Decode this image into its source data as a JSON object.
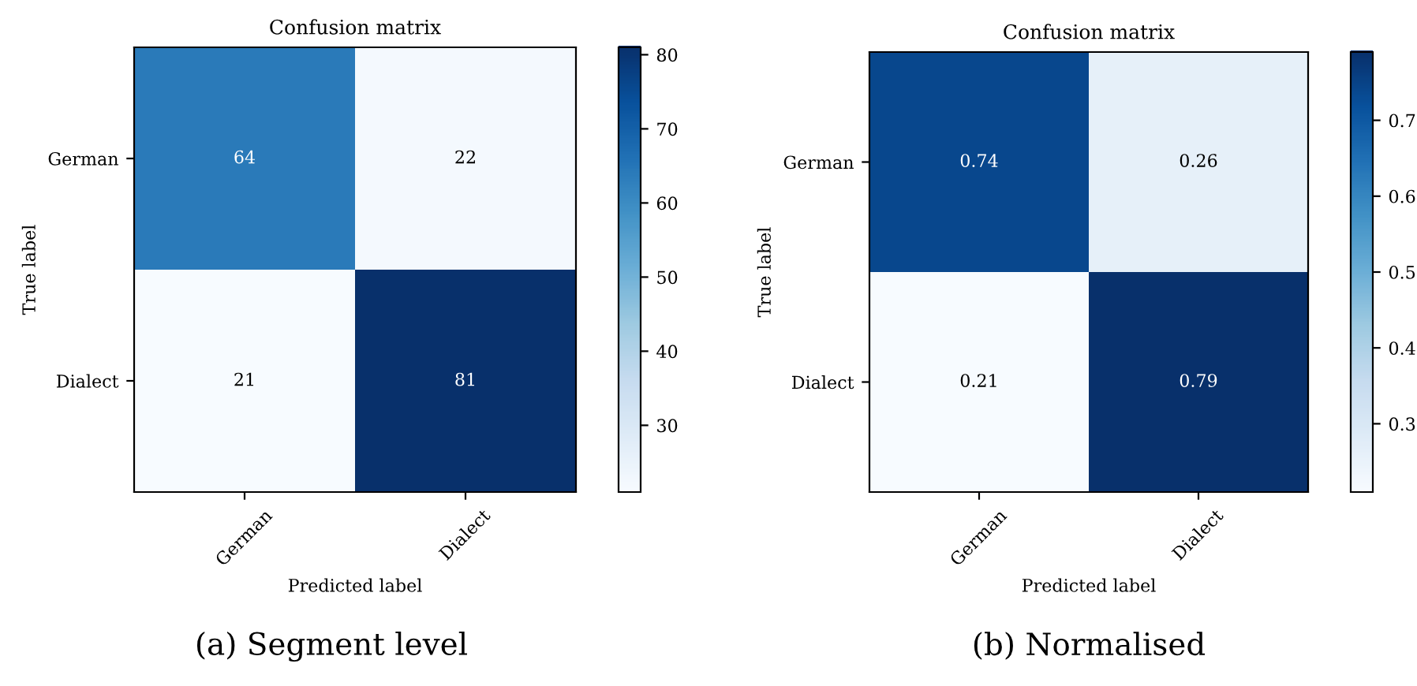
{
  "chart_data": [
    {
      "type": "heatmap",
      "title": "Confusion matrix",
      "xlabel": "Predicted label",
      "ylabel": "True label",
      "categories": [
        "German",
        "Dialect"
      ],
      "y_categories": [
        "German",
        "Dialect"
      ],
      "cells": [
        [
          64,
          22
        ],
        [
          21,
          81
        ]
      ],
      "clim": [
        21,
        81
      ],
      "cticks": [
        30,
        40,
        50,
        60,
        70,
        80
      ],
      "data_labels": true,
      "annotations": [
        "(a) Segment level"
      ]
    },
    {
      "type": "heatmap",
      "title": "Confusion matrix",
      "xlabel": "Predicted label",
      "ylabel": "True label",
      "categories": [
        "German",
        "Dialect"
      ],
      "y_categories": [
        "German",
        "Dialect"
      ],
      "cells": [
        [
          0.74,
          0.26
        ],
        [
          0.21,
          0.79
        ]
      ],
      "clim": [
        0.21,
        0.79
      ],
      "cticks": [
        0.3,
        0.4,
        0.5,
        0.6,
        0.7
      ],
      "data_labels": true,
      "annotations": [
        "(b) Normalised"
      ]
    }
  ]
}
